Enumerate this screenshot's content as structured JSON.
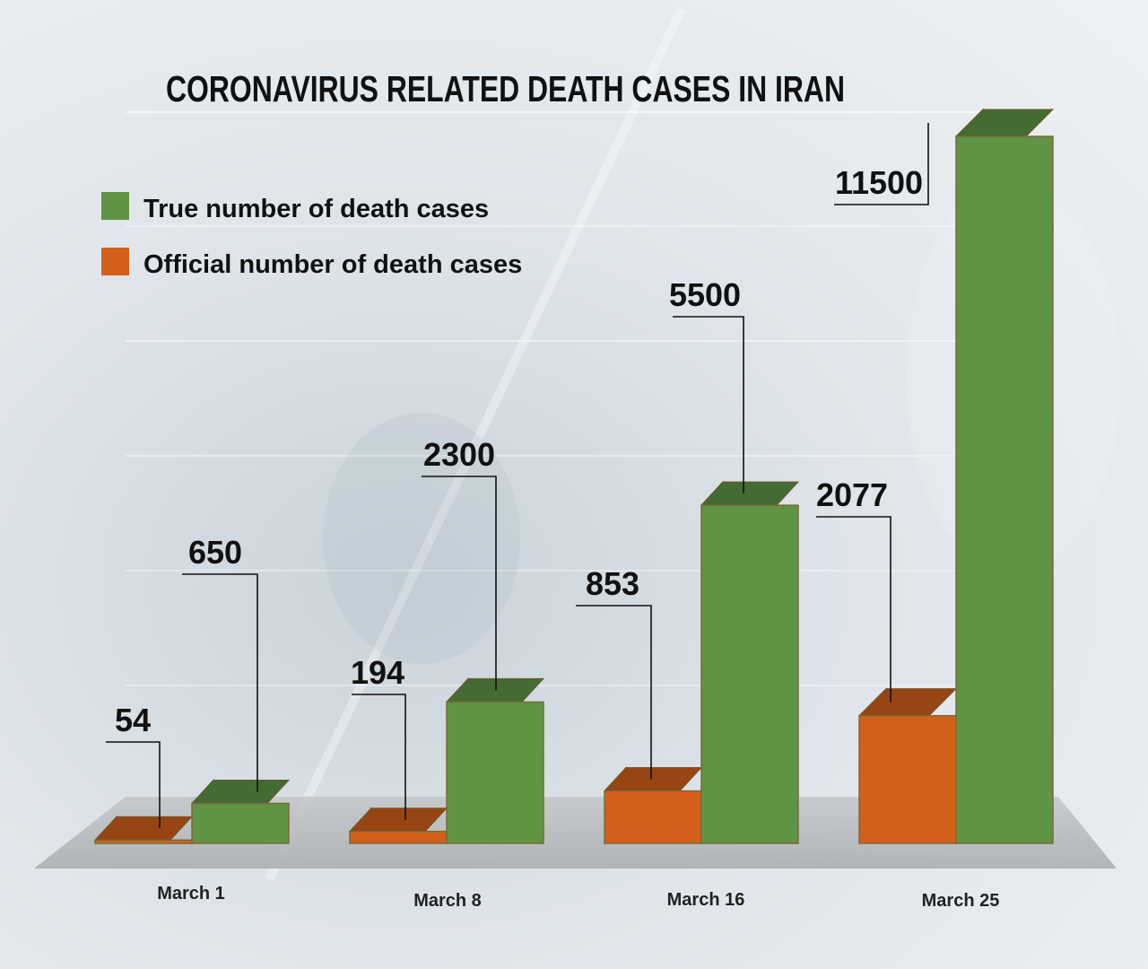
{
  "chart_data": {
    "type": "bar",
    "title": "CORONAVIRUS RELATED DEATH CASES IN IRAN",
    "categories": [
      "March 1",
      "March 8",
      "March 16",
      "March 25"
    ],
    "series": [
      {
        "name": "Official number of death cases",
        "values": [
          54,
          194,
          853,
          2077
        ],
        "color": "#d2601a"
      },
      {
        "name": "True number of death cases",
        "values": [
          650,
          2300,
          5500,
          11500
        ],
        "color": "#5f9444"
      }
    ],
    "legend_position": "top-left",
    "grid": false
  }
}
